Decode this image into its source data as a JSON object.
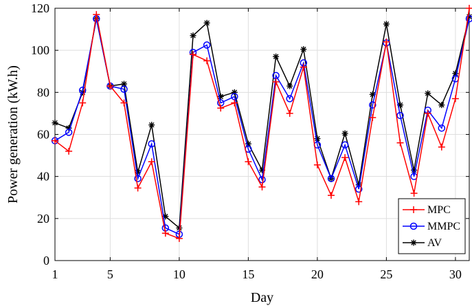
{
  "chart_data": {
    "type": "line",
    "title": "",
    "xlabel": "Day",
    "ylabel": "Power generation (kW.h)",
    "xlim": [
      1,
      31
    ],
    "ylim": [
      0,
      120
    ],
    "xticks": [
      1,
      5,
      10,
      15,
      20,
      25,
      30
    ],
    "yticks": [
      0,
      20,
      40,
      60,
      80,
      100,
      120
    ],
    "grid": true,
    "legend_position": "bottom-right",
    "x": [
      1,
      2,
      3,
      4,
      5,
      6,
      7,
      8,
      9,
      10,
      11,
      12,
      13,
      14,
      15,
      16,
      17,
      18,
      19,
      20,
      21,
      22,
      23,
      24,
      25,
      26,
      27,
      28,
      29,
      30,
      31
    ],
    "series": [
      {
        "name": "MPC",
        "color": "#ff0000",
        "marker": "plus",
        "values": [
          57,
          52,
          75,
          117,
          83,
          75,
          34.5,
          47,
          13,
          10.5,
          98,
          95,
          72.5,
          75,
          47,
          35,
          85,
          70,
          92,
          45.5,
          31,
          49,
          28,
          68,
          104,
          56,
          32,
          70,
          54,
          77,
          120
        ]
      },
      {
        "name": "MMPC",
        "color": "#0000ff",
        "marker": "circle",
        "values": [
          57,
          61,
          81,
          115,
          83,
          81.5,
          39,
          55.5,
          15.5,
          12.5,
          99,
          102.5,
          75,
          78,
          53,
          38.5,
          88,
          77,
          94,
          55,
          39,
          55,
          34,
          74,
          103.5,
          69,
          40,
          71.5,
          63,
          86.5,
          115
        ]
      },
      {
        "name": "AV",
        "color": "#000000",
        "marker": "star",
        "values": [
          65.5,
          63,
          80,
          115,
          83,
          84,
          42,
          64.5,
          21,
          15.5,
          107,
          113,
          78,
          80,
          55.5,
          43,
          97,
          83,
          100.5,
          58,
          39,
          60.5,
          36,
          79,
          112.5,
          74,
          43,
          79.5,
          74,
          89,
          116
        ]
      }
    ]
  }
}
